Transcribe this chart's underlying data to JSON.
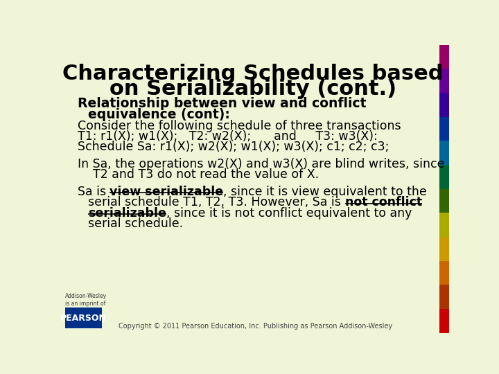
{
  "title_line1": "Characterizing Schedules based",
  "title_line2": "on Serializability (cont.)",
  "background_color": "#f0f5d8",
  "right_bar_colors": [
    "#cc0000",
    "#aa3300",
    "#cc6600",
    "#cc9900",
    "#aaaa00",
    "#336600",
    "#006633",
    "#006699",
    "#003399",
    "#330099",
    "#660099",
    "#990066"
  ],
  "text_color": "#000000",
  "body_lines": [
    "Consider the following schedule of three transactions",
    "T1: r1(X); w1(X);   T2: w2(X);      and     T3: w3(X):",
    "Schedule Sa: r1(X); w2(X); w1(X); w3(X); c1; c2; c3;"
  ],
  "paragraph2_line1": "In Sa, the operations w2(X) and w3(X) are blind writes, since",
  "paragraph2_line2": "    T2 and T3 do not read the value of X.",
  "footer_text": "Copyright © 2011 Pearson Education, Inc. Publishing as Pearson Addison-Wesley",
  "pearson_logo_color": "#003087",
  "addison_text": "Addison-Wesley\nis an imprint of"
}
